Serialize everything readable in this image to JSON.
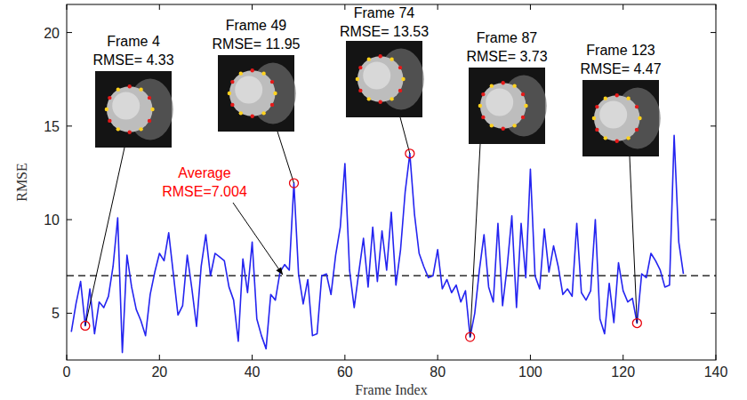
{
  "chart_data": {
    "type": "line",
    "x_label": "Frame Index",
    "y_label": "RMSE",
    "x": [
      1,
      2,
      3,
      4,
      5,
      6,
      7,
      8,
      9,
      10,
      11,
      12,
      13,
      14,
      15,
      16,
      17,
      18,
      19,
      20,
      21,
      22,
      23,
      24,
      25,
      26,
      27,
      28,
      29,
      30,
      31,
      32,
      33,
      34,
      35,
      36,
      37,
      38,
      39,
      40,
      41,
      42,
      43,
      44,
      45,
      46,
      47,
      48,
      49,
      50,
      51,
      52,
      53,
      54,
      55,
      56,
      57,
      58,
      59,
      60,
      61,
      62,
      63,
      64,
      65,
      66,
      67,
      68,
      69,
      70,
      71,
      72,
      73,
      74,
      75,
      76,
      77,
      78,
      79,
      80,
      81,
      82,
      83,
      84,
      85,
      86,
      87,
      88,
      89,
      90,
      91,
      92,
      93,
      94,
      95,
      96,
      97,
      98,
      99,
      100,
      101,
      102,
      103,
      104,
      105,
      106,
      107,
      108,
      109,
      110,
      111,
      112,
      113,
      114,
      115,
      116,
      117,
      118,
      119,
      120,
      121,
      122,
      123,
      124,
      125,
      126,
      127,
      128,
      129,
      130,
      131,
      132,
      133
    ],
    "values": [
      4.0,
      5.5,
      6.7,
      4.33,
      6.3,
      3.9,
      5.6,
      5.3,
      5.9,
      7.5,
      10.1,
      2.9,
      8.1,
      6.4,
      5.2,
      4.6,
      3.8,
      6.0,
      7.2,
      8.2,
      7.8,
      9.3,
      7.1,
      4.9,
      5.4,
      8.1,
      6.3,
      4.3,
      7.5,
      9.2,
      7.0,
      8.2,
      8.0,
      7.8,
      6.4,
      5.7,
      3.5,
      7.9,
      6.1,
      8.8,
      4.7,
      3.8,
      3.1,
      6.0,
      5.7,
      7.2,
      7.6,
      7.3,
      11.95,
      7.1,
      5.5,
      6.8,
      3.8,
      3.9,
      7.0,
      7.1,
      6.0,
      8.1,
      9.6,
      13.0,
      7.3,
      5.3,
      7.2,
      9.0,
      6.4,
      9.6,
      6.7,
      9.4,
      7.3,
      10.4,
      6.5,
      8.4,
      11.5,
      13.53,
      10.3,
      8.2,
      7.5,
      6.9,
      7.0,
      8.4,
      6.3,
      6.8,
      6.1,
      6.5,
      5.6,
      6.2,
      3.73,
      5.0,
      7.3,
      9.2,
      6.4,
      5.6,
      9.8,
      5.4,
      7.5,
      10.2,
      5.3,
      9.8,
      6.9,
      12.7,
      7.0,
      6.3,
      9.5,
      7.2,
      8.6,
      7.5,
      6.0,
      6.3,
      5.9,
      9.8,
      6.1,
      5.7,
      6.2,
      10.0,
      4.7,
      3.9,
      6.6,
      4.5,
      7.7,
      6.2,
      5.6,
      5.8,
      4.47,
      7.1,
      6.9,
      8.2,
      7.8,
      7.3,
      6.4,
      6.5,
      14.5,
      8.8,
      7.1
    ],
    "color": "#2424f0",
    "xlim": [
      0,
      140
    ],
    "xticks": [
      0,
      20,
      40,
      60,
      80,
      100,
      120,
      140
    ],
    "ylim": [
      2.5,
      21.5
    ],
    "yticks": [
      5,
      10,
      15,
      20
    ],
    "grid": false,
    "reference_line": {
      "value": 7.004,
      "label": "Average RMSE=7.004",
      "color": "#ff0000",
      "line_style": "dashed"
    },
    "annotations": [
      {
        "label": "Frame 4",
        "text": "RMSE= 4.33",
        "x": 4,
        "y": 4.33
      },
      {
        "label": "Frame 49",
        "text": "RMSE= 11.95",
        "x": 49,
        "y": 11.95
      },
      {
        "label": "Frame 74",
        "text": "RMSE= 13.53",
        "x": 74,
        "y": 13.53
      },
      {
        "label": "Frame 87",
        "text": "RMSE= 3.73",
        "x": 87,
        "y": 3.73
      },
      {
        "label": "Frame 123",
        "text": "RMSE= 4.47",
        "x": 123,
        "y": 4.47
      }
    ]
  }
}
